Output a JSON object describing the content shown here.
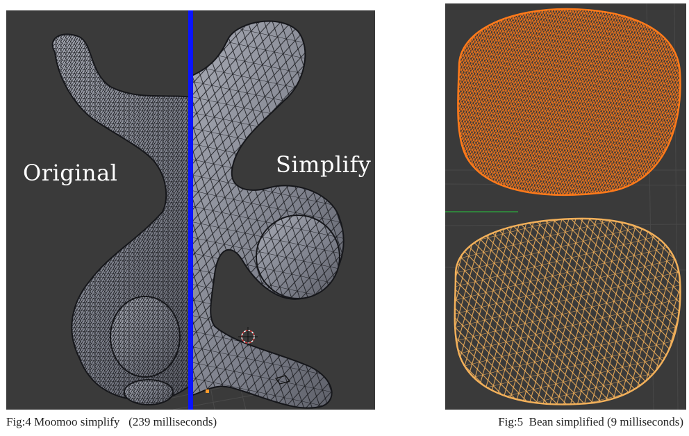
{
  "figures": [
    {
      "id": "fig4",
      "labels": {
        "left": "Original",
        "right": "Simplify"
      },
      "caption": "Fig:4 Moomoo simplify   (239 milliseconds)"
    },
    {
      "id": "fig5",
      "caption": "Fig:5  Bean simplified (9 milliseconds)"
    }
  ],
  "colors": {
    "viewport_bg": "#3a3a3a",
    "mesh_fill": "#8a8d98",
    "mesh_edge": "#1b1c20",
    "divider": "#0a14ff",
    "bean_dense": "#ff7a1a",
    "bean_sparse": "#f2b05a",
    "axis_green": "#2e9a3c",
    "axis_red": "#c83a3a"
  },
  "icons": [
    "3d-cursor-icon",
    "camera-icon",
    "origin-point-icon"
  ]
}
